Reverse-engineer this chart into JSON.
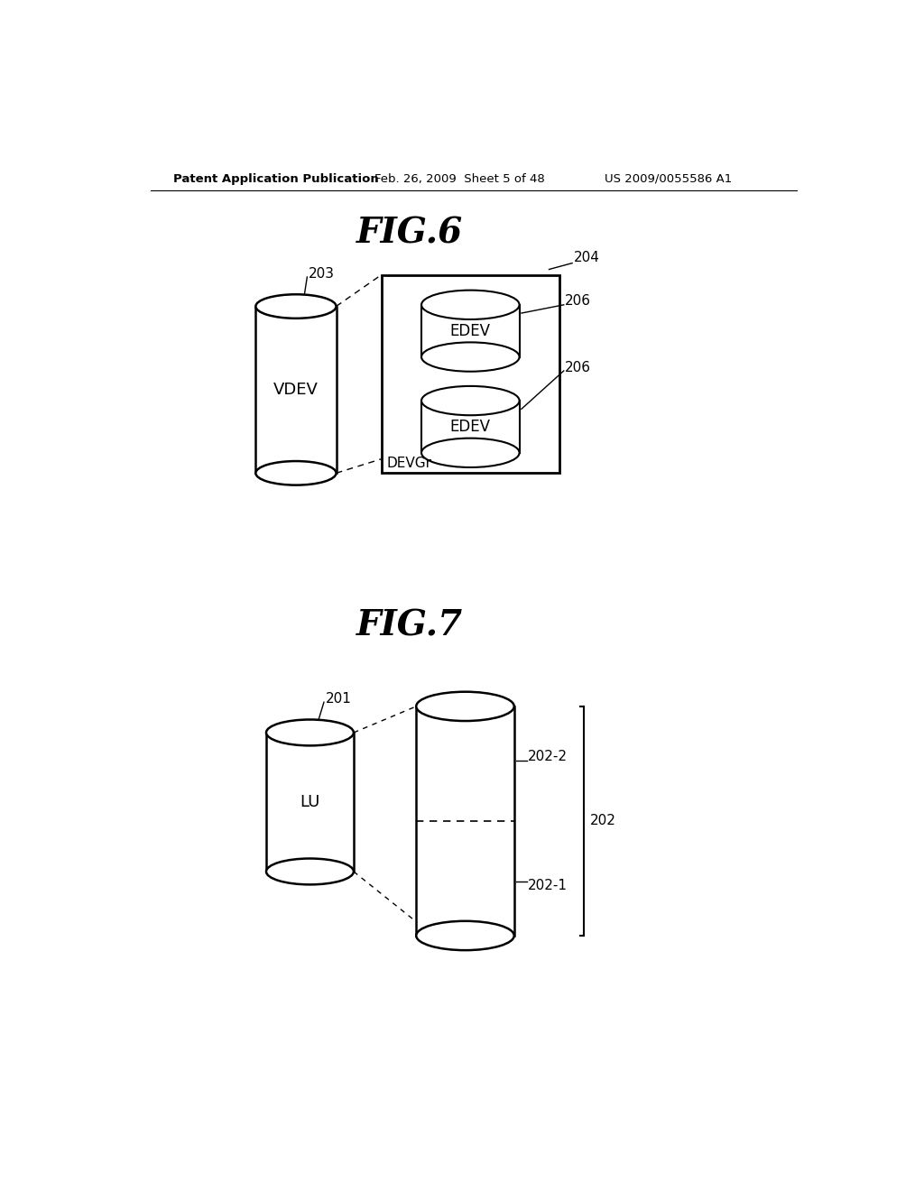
{
  "bg_color": "#ffffff",
  "header_left": "Patent Application Publication",
  "header_mid": "Feb. 26, 2009  Sheet 5 of 48",
  "header_right": "US 2009/0055586 A1",
  "fig6_title": "FIG.6",
  "fig7_title": "FIG.7",
  "fig6_vdev_label": "VDEV",
  "fig6_vdev_ref": "203",
  "fig6_box_ref": "204",
  "fig6_edev1_label": "EDEV",
  "fig6_edev1_ref": "206",
  "fig6_edev2_label": "EDEV",
  "fig6_edev2_ref": "206",
  "fig6_devgr_label": "DEVGr",
  "fig7_lu_label": "LU",
  "fig7_lu_ref": "201",
  "fig7_big_ref": "202",
  "fig7_big_top_ref": "202-2",
  "fig7_big_bot_ref": "202-1"
}
